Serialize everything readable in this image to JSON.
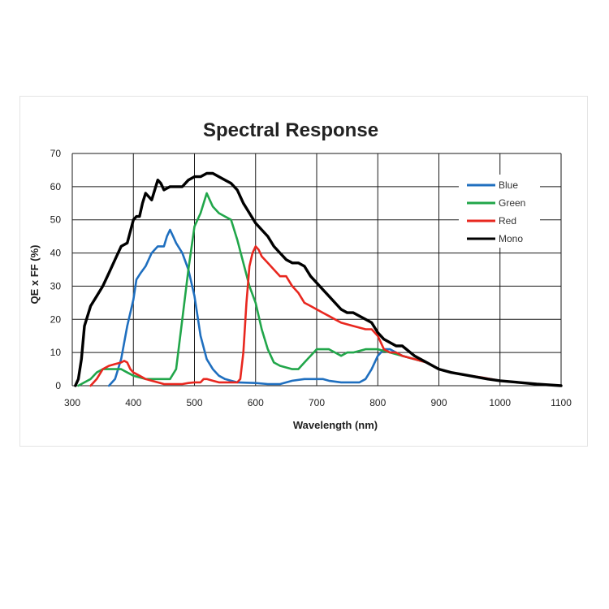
{
  "chart_data": {
    "type": "line",
    "title": "Spectral Response",
    "xlabel": "Wavelength (nm)",
    "ylabel": "QE x FF (%)",
    "xlim": [
      300,
      1100
    ],
    "ylim": [
      0,
      70
    ],
    "x_ticks": [
      300,
      400,
      500,
      600,
      700,
      800,
      900,
      1000,
      1100
    ],
    "y_ticks": [
      0,
      10,
      20,
      30,
      40,
      50,
      60,
      70
    ],
    "grid": true,
    "legend_position": "top-right",
    "series": [
      {
        "name": "Blue",
        "color": "#1f6fbf",
        "points": [
          [
            360,
            0
          ],
          [
            370,
            2
          ],
          [
            380,
            8
          ],
          [
            390,
            18
          ],
          [
            400,
            26
          ],
          [
            405,
            32
          ],
          [
            412,
            34
          ],
          [
            420,
            36
          ],
          [
            430,
            40
          ],
          [
            440,
            42
          ],
          [
            450,
            42
          ],
          [
            455,
            45
          ],
          [
            460,
            47
          ],
          [
            465,
            45
          ],
          [
            470,
            43
          ],
          [
            480,
            40
          ],
          [
            490,
            35
          ],
          [
            500,
            27
          ],
          [
            510,
            15
          ],
          [
            520,
            8
          ],
          [
            530,
            5
          ],
          [
            540,
            3
          ],
          [
            550,
            2
          ],
          [
            560,
            1.5
          ],
          [
            570,
            1
          ],
          [
            600,
            0.8
          ],
          [
            620,
            0.5
          ],
          [
            640,
            0.5
          ],
          [
            660,
            1.5
          ],
          [
            680,
            2
          ],
          [
            700,
            2
          ],
          [
            710,
            2
          ],
          [
            720,
            1.5
          ],
          [
            740,
            1
          ],
          [
            760,
            1
          ],
          [
            770,
            1
          ],
          [
            780,
            2
          ],
          [
            790,
            5
          ],
          [
            800,
            9
          ],
          [
            810,
            11
          ],
          [
            820,
            11
          ],
          [
            830,
            10
          ],
          [
            840,
            9
          ],
          [
            860,
            8
          ],
          [
            880,
            7
          ],
          [
            900,
            5
          ],
          [
            920,
            4
          ],
          [
            950,
            3
          ],
          [
            980,
            2
          ],
          [
            1000,
            1.5
          ],
          [
            1030,
            1
          ],
          [
            1060,
            0.5
          ],
          [
            1100,
            0
          ]
        ]
      },
      {
        "name": "Green",
        "color": "#21a64a",
        "points": [
          [
            310,
            0
          ],
          [
            320,
            1
          ],
          [
            330,
            2
          ],
          [
            340,
            4
          ],
          [
            350,
            5
          ],
          [
            360,
            5
          ],
          [
            370,
            5
          ],
          [
            380,
            5
          ],
          [
            390,
            4
          ],
          [
            400,
            3
          ],
          [
            410,
            2.5
          ],
          [
            420,
            2
          ],
          [
            440,
            2
          ],
          [
            450,
            2
          ],
          [
            460,
            2
          ],
          [
            470,
            5
          ],
          [
            480,
            20
          ],
          [
            490,
            35
          ],
          [
            500,
            48
          ],
          [
            510,
            52
          ],
          [
            515,
            55
          ],
          [
            520,
            58
          ],
          [
            525,
            56
          ],
          [
            530,
            54
          ],
          [
            540,
            52
          ],
          [
            550,
            51
          ],
          [
            560,
            50
          ],
          [
            570,
            44
          ],
          [
            580,
            37
          ],
          [
            590,
            30
          ],
          [
            600,
            25
          ],
          [
            610,
            17
          ],
          [
            620,
            11
          ],
          [
            630,
            7
          ],
          [
            640,
            6
          ],
          [
            660,
            5
          ],
          [
            670,
            5
          ],
          [
            680,
            7
          ],
          [
            690,
            9
          ],
          [
            700,
            11
          ],
          [
            710,
            11
          ],
          [
            720,
            11
          ],
          [
            730,
            10
          ],
          [
            740,
            9
          ],
          [
            750,
            10
          ],
          [
            760,
            10
          ],
          [
            780,
            11
          ],
          [
            790,
            11
          ],
          [
            800,
            11
          ],
          [
            820,
            10
          ],
          [
            840,
            9
          ],
          [
            860,
            8
          ],
          [
            880,
            7
          ],
          [
            900,
            5
          ],
          [
            920,
            4
          ],
          [
            950,
            3
          ],
          [
            980,
            2
          ],
          [
            1000,
            1.5
          ],
          [
            1030,
            1
          ],
          [
            1060,
            0.5
          ],
          [
            1100,
            0
          ]
        ]
      },
      {
        "name": "Red",
        "color": "#e8271f",
        "points": [
          [
            330,
            0
          ],
          [
            340,
            2
          ],
          [
            350,
            5
          ],
          [
            360,
            6
          ],
          [
            370,
            6.5
          ],
          [
            380,
            7
          ],
          [
            385,
            7.5
          ],
          [
            390,
            7
          ],
          [
            395,
            5
          ],
          [
            400,
            4
          ],
          [
            410,
            3
          ],
          [
            420,
            2
          ],
          [
            430,
            1.5
          ],
          [
            440,
            1
          ],
          [
            450,
            0.5
          ],
          [
            460,
            0.5
          ],
          [
            470,
            0.5
          ],
          [
            480,
            0.5
          ],
          [
            490,
            0.8
          ],
          [
            500,
            1
          ],
          [
            510,
            1
          ],
          [
            515,
            2
          ],
          [
            520,
            2
          ],
          [
            530,
            1.5
          ],
          [
            540,
            1
          ],
          [
            550,
            1
          ],
          [
            560,
            1
          ],
          [
            570,
            1
          ],
          [
            575,
            2
          ],
          [
            580,
            10
          ],
          [
            585,
            25
          ],
          [
            590,
            36
          ],
          [
            595,
            40
          ],
          [
            600,
            42
          ],
          [
            605,
            41
          ],
          [
            610,
            39
          ],
          [
            620,
            37
          ],
          [
            630,
            35
          ],
          [
            640,
            33
          ],
          [
            650,
            33
          ],
          [
            660,
            30
          ],
          [
            670,
            28
          ],
          [
            680,
            25
          ],
          [
            690,
            24
          ],
          [
            700,
            23
          ],
          [
            710,
            22
          ],
          [
            720,
            21
          ],
          [
            730,
            20
          ],
          [
            740,
            19
          ],
          [
            760,
            18
          ],
          [
            780,
            17
          ],
          [
            790,
            17
          ],
          [
            800,
            15
          ],
          [
            810,
            11
          ],
          [
            820,
            10
          ],
          [
            830,
            10
          ],
          [
            840,
            9
          ],
          [
            860,
            8
          ],
          [
            880,
            7
          ],
          [
            900,
            5
          ],
          [
            920,
            4
          ],
          [
            950,
            3
          ],
          [
            970,
            2.5
          ],
          [
            1000,
            1.5
          ],
          [
            1030,
            1
          ],
          [
            1060,
            0.5
          ],
          [
            1100,
            0
          ]
        ]
      },
      {
        "name": "Mono",
        "color": "#000000",
        "points": [
          [
            305,
            0
          ],
          [
            310,
            2
          ],
          [
            315,
            8
          ],
          [
            320,
            18
          ],
          [
            330,
            24
          ],
          [
            340,
            27
          ],
          [
            350,
            30
          ],
          [
            360,
            34
          ],
          [
            370,
            38
          ],
          [
            380,
            42
          ],
          [
            390,
            43
          ],
          [
            400,
            50
          ],
          [
            405,
            51
          ],
          [
            410,
            51
          ],
          [
            415,
            55
          ],
          [
            420,
            58
          ],
          [
            425,
            57
          ],
          [
            430,
            56
          ],
          [
            435,
            59
          ],
          [
            440,
            62
          ],
          [
            445,
            61
          ],
          [
            450,
            59
          ],
          [
            460,
            60
          ],
          [
            470,
            60
          ],
          [
            480,
            60
          ],
          [
            490,
            62
          ],
          [
            500,
            63
          ],
          [
            510,
            63
          ],
          [
            520,
            64
          ],
          [
            530,
            64
          ],
          [
            540,
            63
          ],
          [
            550,
            62
          ],
          [
            560,
            61
          ],
          [
            570,
            59
          ],
          [
            580,
            55
          ],
          [
            590,
            52
          ],
          [
            600,
            49
          ],
          [
            610,
            47
          ],
          [
            620,
            45
          ],
          [
            630,
            42
          ],
          [
            640,
            40
          ],
          [
            650,
            38
          ],
          [
            660,
            37
          ],
          [
            670,
            37
          ],
          [
            680,
            36
          ],
          [
            690,
            33
          ],
          [
            700,
            31
          ],
          [
            710,
            29
          ],
          [
            720,
            27
          ],
          [
            730,
            25
          ],
          [
            740,
            23
          ],
          [
            750,
            22
          ],
          [
            760,
            22
          ],
          [
            770,
            21
          ],
          [
            780,
            20
          ],
          [
            790,
            19
          ],
          [
            800,
            16
          ],
          [
            810,
            14
          ],
          [
            820,
            13
          ],
          [
            830,
            12
          ],
          [
            840,
            12
          ],
          [
            860,
            9
          ],
          [
            880,
            7
          ],
          [
            900,
            5
          ],
          [
            920,
            4
          ],
          [
            950,
            3
          ],
          [
            980,
            2
          ],
          [
            1000,
            1.5
          ],
          [
            1030,
            1
          ],
          [
            1060,
            0.5
          ],
          [
            1100,
            0
          ]
        ]
      }
    ]
  }
}
